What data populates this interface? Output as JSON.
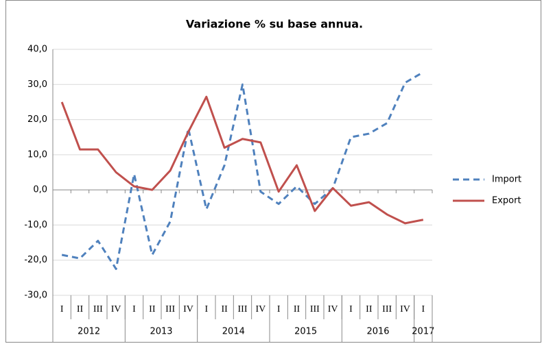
{
  "chart_data": {
    "type": "line",
    "title": "Variazione % su base annua.",
    "categories": [
      "I",
      "II",
      "III",
      "IV",
      "I",
      "II",
      "III",
      "IV",
      "I",
      "II",
      "III",
      "IV",
      "I",
      "II",
      "III",
      "IV",
      "I",
      "II",
      "III",
      "IV",
      "I"
    ],
    "year_groups": [
      {
        "label": "2012",
        "span": 4
      },
      {
        "label": "2013",
        "span": 4
      },
      {
        "label": "2014",
        "span": 4
      },
      {
        "label": "2015",
        "span": 4
      },
      {
        "label": "2016",
        "span": 4
      },
      {
        "label": "2017",
        "span": 1
      }
    ],
    "series": [
      {
        "name": "Import",
        "color": "#4f81bd",
        "dashed": true,
        "values": [
          -18.5,
          -19.5,
          -14.5,
          -22.5,
          4.5,
          -18.5,
          -9,
          17.5,
          -5.5,
          7,
          30,
          -0.5,
          -4,
          1,
          -4,
          0.5,
          15,
          16,
          19,
          30.5,
          33.5
        ]
      },
      {
        "name": "Export",
        "color": "#c0504d",
        "dashed": false,
        "values": [
          25,
          11.5,
          11.5,
          5,
          1,
          0,
          5.5,
          16.5,
          26.5,
          12,
          14.5,
          13.5,
          -0.5,
          7,
          -6,
          0.5,
          -4.5,
          -3.5,
          -7,
          -9.5,
          -8.5
        ]
      }
    ],
    "ylim": [
      -30,
      40
    ],
    "yticks": [
      {
        "value": -30,
        "label": "-30,0"
      },
      {
        "value": -20,
        "label": "-20,0"
      },
      {
        "value": -10,
        "label": "-10,0"
      },
      {
        "value": 0,
        "label": "0,0"
      },
      {
        "value": 10,
        "label": "10,0"
      },
      {
        "value": 20,
        "label": "20,0"
      },
      {
        "value": 30,
        "label": "30,0"
      },
      {
        "value": 40,
        "label": "40,0"
      }
    ],
    "grid": true,
    "legend": "right"
  }
}
